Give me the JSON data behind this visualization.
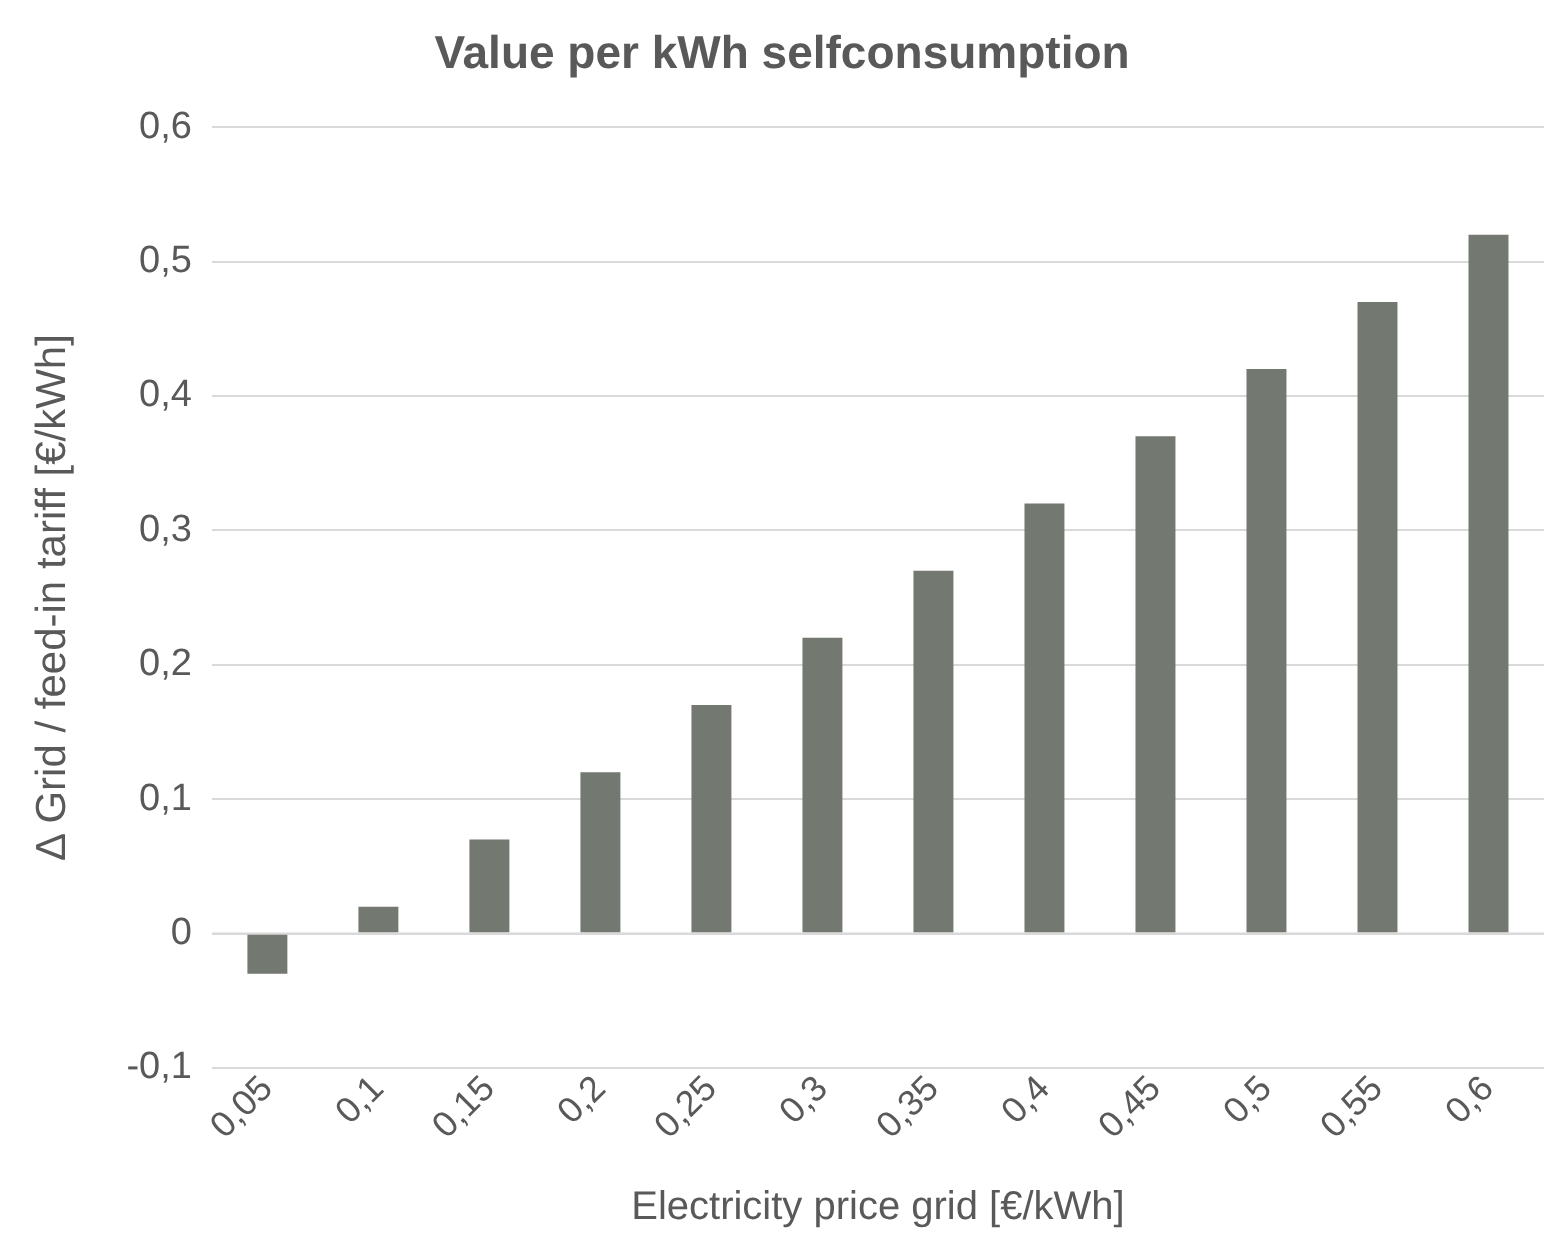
{
  "chart_data": {
    "type": "bar",
    "title": "Value per kWh selfconsumption",
    "xlabel": "Electricity price grid [€/kWh]",
    "ylabel": "Δ Grid / feed-in tariff [€/kWh]",
    "categories": [
      "0,05",
      "0,1",
      "0,15",
      "0,2",
      "0,25",
      "0,3",
      "0,35",
      "0,4",
      "0,45",
      "0,5",
      "0,55",
      "0,6"
    ],
    "values": [
      -0.03,
      0.02,
      0.07,
      0.12,
      0.17,
      0.22,
      0.27,
      0.32,
      0.37,
      0.42,
      0.47,
      0.52
    ],
    "color": "#737871",
    "ylim": [
      -0.1,
      0.6
    ],
    "yticks": [
      {
        "value": -0.1,
        "label": "-0,1"
      },
      {
        "value": 0,
        "label": "0"
      },
      {
        "value": 0.1,
        "label": "0,1"
      },
      {
        "value": 0.2,
        "label": "0,2"
      },
      {
        "value": 0.3,
        "label": "0,3"
      },
      {
        "value": 0.4,
        "label": "0,4"
      },
      {
        "value": 0.5,
        "label": "0,5"
      },
      {
        "value": 0.6,
        "label": "0,6"
      }
    ],
    "grid": "y",
    "legend": false
  }
}
